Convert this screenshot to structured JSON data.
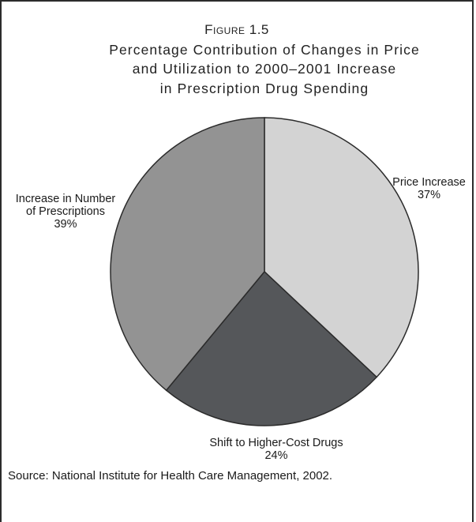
{
  "figure": {
    "label": "Figure 1.5",
    "title_lines": [
      "Percentage Contribution of Changes in Price",
      "and Utilization to 2000–2001 Increase",
      "in Prescription Drug Spending"
    ],
    "source": "Source: National Institute for Health Care Management, 2002."
  },
  "chart_data": {
    "type": "pie",
    "title": "Percentage Contribution of Changes in Price and Utilization to 2000–2001 Increase in Prescription Drug Spending",
    "start_angle": "top, clockwise",
    "slices": [
      {
        "label_lines": [
          "Price Increase"
        ],
        "pct_label": "37%",
        "value": 37,
        "color": "#d3d3d3"
      },
      {
        "label_lines": [
          "Shift to Higher-Cost Drugs"
        ],
        "pct_label": "24%",
        "value": 24,
        "color": "#55575a"
      },
      {
        "label_lines": [
          "Increase in Number",
          "of Prescriptions"
        ],
        "pct_label": "39%",
        "value": 39,
        "color": "#939393"
      }
    ],
    "edge_color": "#2b2b2b"
  }
}
